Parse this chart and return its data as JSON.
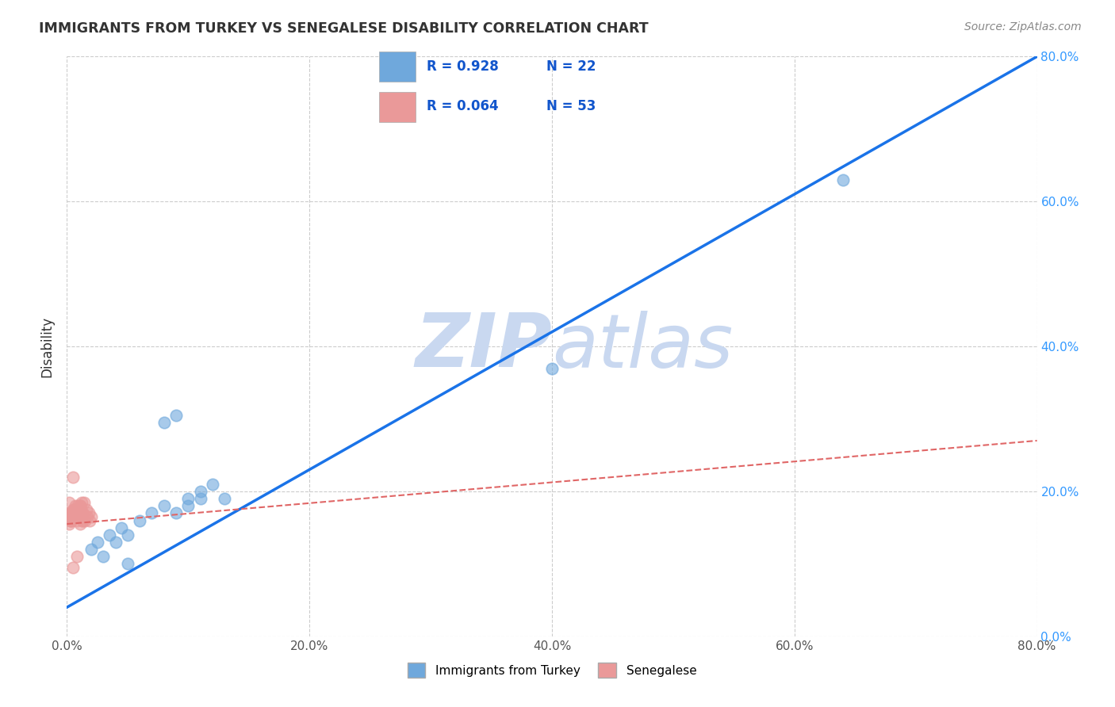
{
  "title": "IMMIGRANTS FROM TURKEY VS SENEGALESE DISABILITY CORRELATION CHART",
  "source": "Source: ZipAtlas.com",
  "ylabel": "Disability",
  "xlim": [
    0.0,
    0.8
  ],
  "ylim": [
    0.0,
    0.8
  ],
  "xticks": [
    0.0,
    0.2,
    0.4,
    0.6,
    0.8
  ],
  "yticks": [
    0.0,
    0.2,
    0.4,
    0.6,
    0.8
  ],
  "xtick_labels": [
    "0.0%",
    "20.0%",
    "40.0%",
    "60.0%",
    "80.0%"
  ],
  "ytick_labels": [
    "0.0%",
    "20.0%",
    "40.0%",
    "60.0%",
    "80.0%"
  ],
  "blue_R": 0.928,
  "blue_N": 22,
  "pink_R": 0.064,
  "pink_N": 53,
  "blue_color": "#6fa8dc",
  "pink_color": "#ea9999",
  "blue_line_color": "#1a73e8",
  "pink_line_color": "#e06666",
  "watermark_color": "#c9d8f0",
  "background_color": "#ffffff",
  "grid_color": "#cccccc",
  "blue_line_x0": 0.0,
  "blue_line_y0": 0.04,
  "blue_line_x1": 0.8,
  "blue_line_y1": 0.8,
  "pink_line_x0": 0.0,
  "pink_line_y0": 0.155,
  "pink_line_x1": 0.8,
  "pink_line_y1": 0.27,
  "blue_scatter_x": [
    0.02,
    0.025,
    0.03,
    0.035,
    0.04,
    0.045,
    0.05,
    0.06,
    0.07,
    0.08,
    0.09,
    0.1,
    0.11,
    0.12,
    0.13,
    0.08,
    0.09,
    0.1,
    0.11,
    0.4,
    0.64,
    0.05
  ],
  "blue_scatter_y": [
    0.12,
    0.13,
    0.11,
    0.14,
    0.13,
    0.15,
    0.14,
    0.16,
    0.17,
    0.18,
    0.17,
    0.19,
    0.2,
    0.21,
    0.19,
    0.295,
    0.305,
    0.18,
    0.19,
    0.37,
    0.63,
    0.1
  ],
  "pink_scatter_x": [
    0.002,
    0.003,
    0.004,
    0.005,
    0.006,
    0.007,
    0.008,
    0.009,
    0.01,
    0.011,
    0.012,
    0.013,
    0.014,
    0.015,
    0.016,
    0.017,
    0.018,
    0.019,
    0.02,
    0.005,
    0.008,
    0.01,
    0.012,
    0.003,
    0.006,
    0.009,
    0.004,
    0.007,
    0.011,
    0.013,
    0.002,
    0.005,
    0.008,
    0.01,
    0.003,
    0.006,
    0.009,
    0.004,
    0.007,
    0.011,
    0.013,
    0.002,
    0.005,
    0.008,
    0.003,
    0.006,
    0.009,
    0.004,
    0.007,
    0.011,
    0.013,
    0.008,
    0.005
  ],
  "pink_scatter_y": [
    0.155,
    0.16,
    0.165,
    0.22,
    0.175,
    0.18,
    0.165,
    0.17,
    0.175,
    0.18,
    0.165,
    0.17,
    0.185,
    0.16,
    0.175,
    0.165,
    0.17,
    0.16,
    0.165,
    0.175,
    0.16,
    0.17,
    0.185,
    0.165,
    0.175,
    0.18,
    0.17,
    0.165,
    0.175,
    0.16,
    0.165,
    0.17,
    0.175,
    0.165,
    0.16,
    0.175,
    0.165,
    0.17,
    0.175,
    0.18,
    0.16,
    0.185,
    0.165,
    0.175,
    0.17,
    0.165,
    0.175,
    0.16,
    0.165,
    0.155,
    0.17,
    0.11,
    0.095
  ],
  "figsize": [
    14.06,
    8.92
  ],
  "dpi": 100
}
